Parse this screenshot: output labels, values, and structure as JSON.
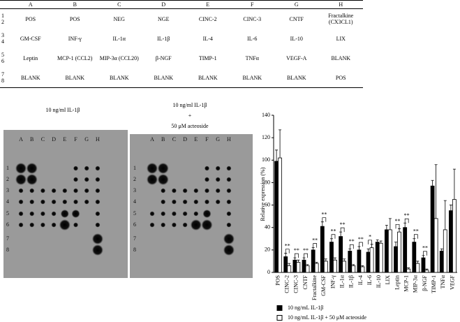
{
  "table": {
    "columns": [
      "A",
      "B",
      "C",
      "D",
      "E",
      "F",
      "G",
      "H"
    ],
    "rows": [
      {
        "label": [
          "1",
          "2"
        ],
        "cells": [
          "POS",
          "POS",
          "NEG",
          "NGE",
          "CINC-2",
          "CINC-3",
          "CNTF",
          "Fractalkine (CX3CL1)"
        ]
      },
      {
        "label": [
          "3",
          "4"
        ],
        "cells": [
          "GM-CSF",
          "INF-γ",
          "IL-1α",
          "IL-1β",
          "IL-4",
          "IL-6",
          "IL-10",
          "LIX"
        ]
      },
      {
        "label": [
          "5",
          "6"
        ],
        "cells": [
          "Leptin",
          "MCP-1 (CCL2)",
          "MIP-3α (CCL20)",
          "β-NGF",
          "TIMP-1",
          "TNFα",
          "VEGF-A",
          "BLANK"
        ]
      },
      {
        "label": [
          "7",
          "8"
        ],
        "cells": [
          "BLANK",
          "BLANK",
          "BLANK",
          "BLANK",
          "BLANK",
          "BLANK",
          "BLANK",
          "POS"
        ]
      }
    ]
  },
  "blots": {
    "left_title": [
      "10 ng/ml IL-1β"
    ],
    "right_title": [
      "10 ng/ml IL-1β",
      "+",
      "50 μM acteoside"
    ],
    "columns": [
      "A",
      "B",
      "C",
      "D",
      "E",
      "F",
      "G",
      "H"
    ],
    "rows": [
      "1",
      "2",
      "3",
      "4",
      "5",
      "6",
      "7",
      "8"
    ]
  },
  "chart_data": {
    "type": "bar",
    "y_label": "Relative expression (%)",
    "categories": [
      "POS",
      "CINC-2",
      "CINC-3",
      "CNTF",
      "Fractalkine",
      "GM-CSF",
      "INF-γ",
      "IL-1α",
      "IL-1β",
      "IL-4",
      "IL-6",
      "IL-10",
      "LIX",
      "Leptin",
      "MCP-1",
      "MIP-3α",
      "β-NGF",
      "TIMP-1",
      "TNFα",
      "VEGF"
    ],
    "series": [
      {
        "name": "10 ng/mL IL-1β",
        "color": "#000000",
        "values": [
          99,
          14,
          11,
          11,
          20,
          41,
          27,
          32,
          19,
          20,
          18,
          27,
          38,
          23,
          40,
          27,
          13,
          77,
          19,
          55
        ],
        "errors": [
          10,
          3,
          2,
          2,
          2,
          4,
          3,
          4,
          2,
          3,
          3,
          2,
          4,
          4,
          4,
          3,
          2,
          5,
          2,
          5
        ]
      },
      {
        "name": "10 ng/mL IL-1β + 50 μM acteoside",
        "color": "#ffffff",
        "values": [
          102,
          6,
          9,
          6,
          8,
          10,
          11,
          10,
          6,
          5,
          22,
          26,
          38,
          36,
          3,
          8,
          2,
          48,
          38,
          65
        ],
        "errors": [
          25,
          2,
          2,
          1,
          1,
          2,
          2,
          2,
          1,
          1,
          3,
          2,
          10,
          3,
          1,
          2,
          1,
          48,
          26,
          27
        ]
      }
    ],
    "significance": [
      null,
      "**",
      "**",
      "**",
      "**",
      "**",
      "**",
      "**",
      "**",
      "**",
      "*",
      null,
      null,
      "**",
      "**",
      "**",
      "**",
      null,
      null,
      null
    ],
    "ylim": [
      0,
      140
    ],
    "yticks": [
      0,
      20,
      40,
      60,
      80,
      100,
      120,
      140
    ]
  }
}
